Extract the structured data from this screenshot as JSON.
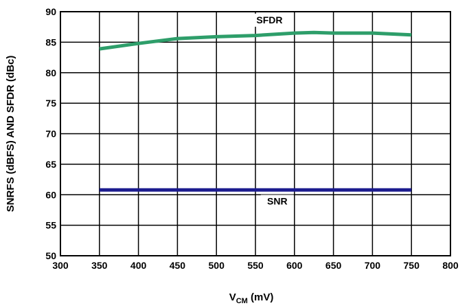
{
  "chart_data": {
    "type": "line",
    "title": "",
    "xlabel_main": "V",
    "xlabel_sub": "CM",
    "xlabel_unit": " (mV)",
    "ylabel": "SNRFS (dBFS) AND SFDR (dBc)",
    "xlim": [
      300,
      800
    ],
    "ylim": [
      50,
      90
    ],
    "grid": true,
    "x_ticks": [
      "300",
      "350",
      "400",
      "450",
      "500",
      "550",
      "600",
      "650",
      "700",
      "750",
      "800"
    ],
    "y_ticks": [
      "50",
      "55",
      "60",
      "65",
      "70",
      "75",
      "80",
      "85",
      "90"
    ],
    "series": [
      {
        "name": "SFDR",
        "color": "#2e9e6a",
        "x": [
          350,
          400,
          450,
          500,
          550,
          600,
          625,
          650,
          700,
          750
        ],
        "values": [
          83.9,
          84.8,
          85.6,
          85.9,
          86.1,
          86.5,
          86.6,
          86.5,
          86.5,
          86.2
        ]
      },
      {
        "name": "SNR",
        "color": "#1c1c8f",
        "x": [
          350,
          400,
          450,
          500,
          550,
          600,
          650,
          700,
          750
        ],
        "values": [
          60.8,
          60.8,
          60.8,
          60.8,
          60.8,
          60.8,
          60.8,
          60.8,
          60.8
        ]
      }
    ]
  }
}
